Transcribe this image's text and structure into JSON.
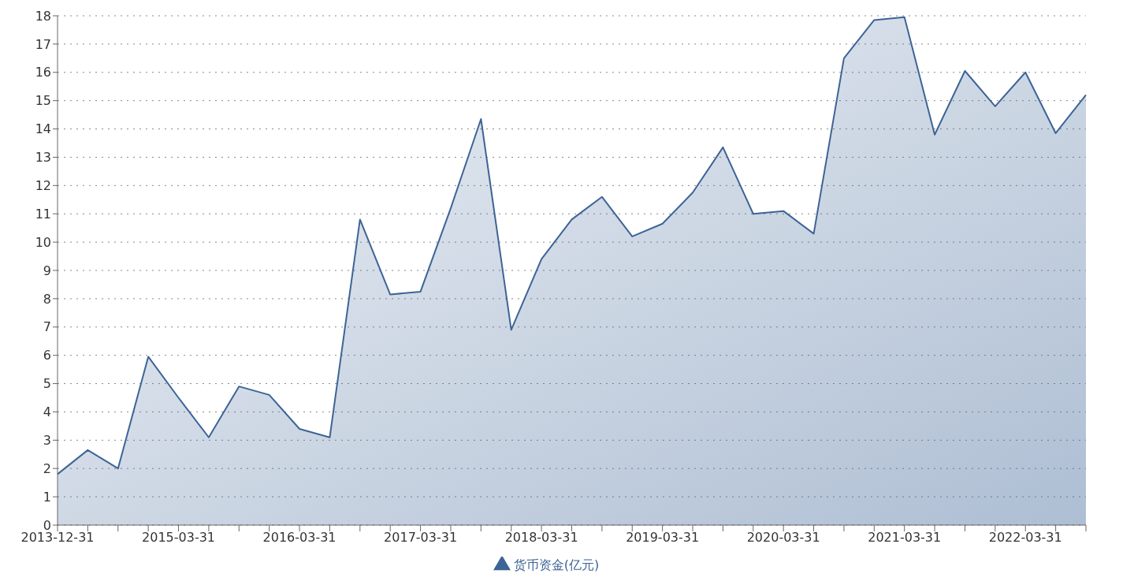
{
  "chart_data": {
    "type": "area",
    "categories": [
      "2013-12-31",
      null,
      null,
      null,
      "2015-03-31",
      null,
      null,
      null,
      "2016-03-31",
      null,
      null,
      null,
      "2017-03-31",
      null,
      null,
      null,
      "2018-03-31",
      null,
      null,
      null,
      "2019-03-31",
      null,
      null,
      null,
      "2020-03-31",
      null,
      null,
      null,
      "2021-03-31",
      null,
      null,
      null,
      "2022-03-31",
      null,
      null
    ],
    "series": [
      {
        "name": "货币资金(亿元)",
        "color": "#3d6496",
        "values": [
          1.8,
          2.65,
          2.0,
          5.95,
          4.5,
          3.1,
          4.9,
          4.6,
          3.4,
          3.1,
          10.8,
          8.15,
          8.25,
          11.2,
          14.35,
          6.9,
          9.4,
          10.8,
          11.6,
          10.2,
          10.65,
          11.75,
          13.35,
          11.0,
          11.1,
          10.3,
          16.5,
          17.85,
          17.95,
          13.8,
          16.05,
          14.8,
          16.0,
          13.85,
          15.2
        ]
      }
    ],
    "ylim": [
      0,
      18
    ],
    "yticks": [
      0,
      1,
      2,
      3,
      4,
      5,
      6,
      7,
      8,
      9,
      10,
      11,
      12,
      13,
      14,
      15,
      16,
      17,
      18
    ],
    "grid": "y",
    "legend": "bottom",
    "marker": "none",
    "line_style": "solid"
  }
}
